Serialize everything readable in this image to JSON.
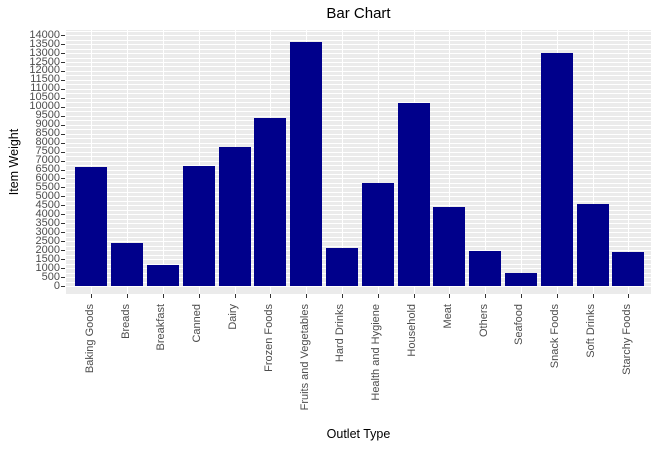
{
  "title": "Bar Chart",
  "chart_data": {
    "type": "bar",
    "title": "Bar Chart",
    "xlabel": "Outlet Type",
    "ylabel": "Item Weight",
    "categories": [
      "Baking Goods",
      "Breads",
      "Breakfast",
      "Canned",
      "Dairy",
      "Frozen Foods",
      "Fruits and Vegetables",
      "Hard Drinks",
      "Health and Hygiene",
      "Household",
      "Meat",
      "Others",
      "Seafood",
      "Snack Foods",
      "Soft Drinks",
      "Starchy Foods"
    ],
    "values": [
      6650,
      2380,
      1170,
      6690,
      7740,
      9350,
      13600,
      2140,
      5730,
      10220,
      4420,
      1950,
      710,
      13000,
      4560,
      1880
    ],
    "ylim": [
      0,
      14000
    ],
    "ytick_step": 500,
    "minor_grid_step": 250,
    "grid": true,
    "legend": "none",
    "bar_color": "#00008B",
    "plot_bg_color": "#EBEBEB",
    "grid_color": "#FFFFFF",
    "tick_label_color": "#4D4D4D",
    "title_color": "#000000"
  }
}
